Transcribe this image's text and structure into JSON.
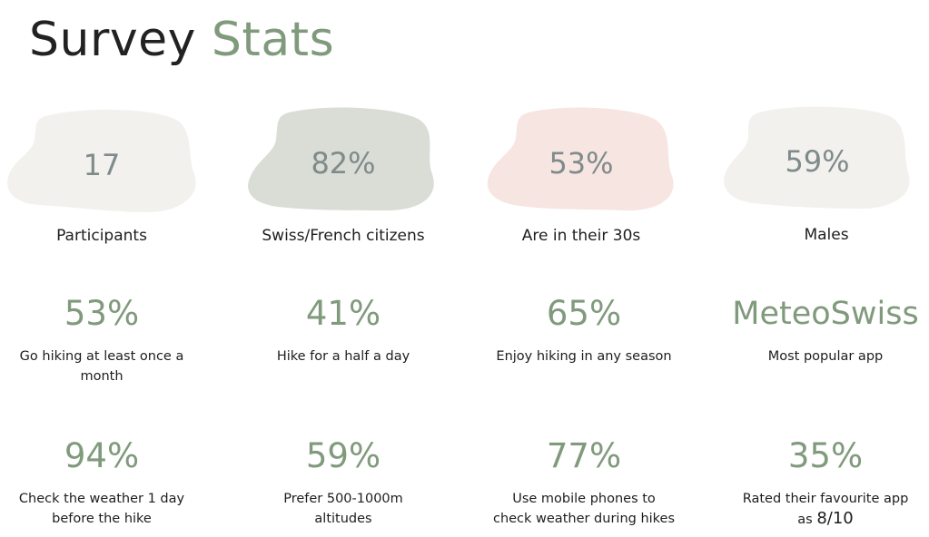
{
  "title": {
    "part1": "Survey",
    "part2": "Stats"
  },
  "colors": {
    "accent_green": "#809a7c",
    "blob_light": "#f2f1ee",
    "blob_green": "#d9ddd6",
    "blob_pink": "#f7e5e2",
    "blob_text": "#7f8a8a"
  },
  "highlights": [
    {
      "value": "17",
      "label": "Participants"
    },
    {
      "value": "82%",
      "label": "Swiss/French citizens"
    },
    {
      "value": "53%",
      "label": "Are in their 30s"
    },
    {
      "value": "59%",
      "label": "Males"
    }
  ],
  "stats_row1": [
    {
      "value": "53%",
      "label": "Go hiking at least once a month"
    },
    {
      "value": "41%",
      "label": "Hike for a half a day"
    },
    {
      "value": "65%",
      "label": "Enjoy hiking in any season"
    },
    {
      "value": "MeteoSwiss",
      "label": "Most popular app"
    }
  ],
  "stats_row2": [
    {
      "value": "94%",
      "label": "Check the weather 1 day before the hike"
    },
    {
      "value": "59%",
      "label": "Prefer 500-1000m altitudes"
    },
    {
      "value": "77%",
      "label": "Use mobile phones to check weather during hikes"
    },
    {
      "value": "35%",
      "label": "Rated their favourite app as",
      "label_emphasis": "8/10"
    }
  ]
}
